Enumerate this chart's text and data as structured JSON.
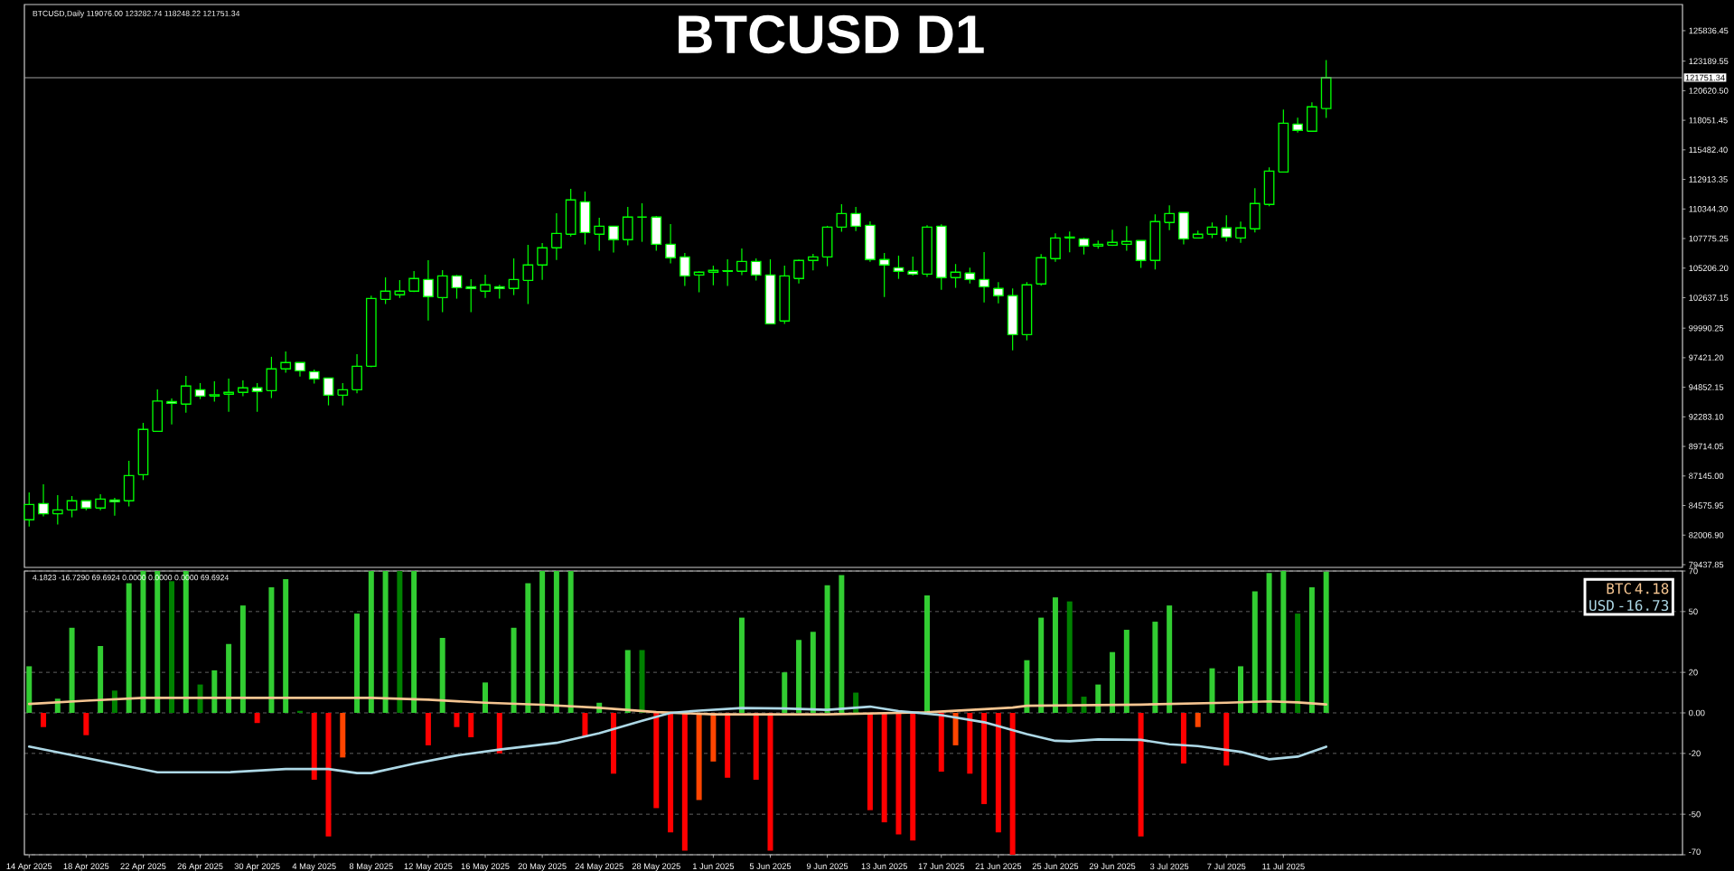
{
  "chart_data": [
    {
      "type": "candlestick",
      "title": "BTCUSD D1",
      "annotations": [
        "BTCUSD,Daily 119076.00 123282.74 118248.22 121751.34"
      ],
      "x": [
        "2025-04-14",
        "2025-04-15",
        "2025-04-16",
        "2025-04-17",
        "2025-04-18",
        "2025-04-19",
        "2025-04-20",
        "2025-04-21",
        "2025-04-22",
        "2025-04-23",
        "2025-04-24",
        "2025-04-25",
        "2025-04-26",
        "2025-04-27",
        "2025-04-28",
        "2025-04-29",
        "2025-04-30",
        "2025-05-01",
        "2025-05-02",
        "2025-05-03",
        "2025-05-04",
        "2025-05-05",
        "2025-05-06",
        "2025-05-07",
        "2025-05-08",
        "2025-05-09",
        "2025-05-10",
        "2025-05-11",
        "2025-05-12",
        "2025-05-13",
        "2025-05-14",
        "2025-05-15",
        "2025-05-16",
        "2025-05-17",
        "2025-05-18",
        "2025-05-19",
        "2025-05-20",
        "2025-05-21",
        "2025-05-22",
        "2025-05-23",
        "2025-05-24",
        "2025-05-25",
        "2025-05-26",
        "2025-05-27",
        "2025-05-28",
        "2025-05-29",
        "2025-05-30",
        "2025-05-31",
        "2025-06-01",
        "2025-06-02",
        "2025-06-03",
        "2025-06-04",
        "2025-06-05",
        "2025-06-06",
        "2025-06-07",
        "2025-06-08",
        "2025-06-09",
        "2025-06-10",
        "2025-06-11",
        "2025-06-12",
        "2025-06-13",
        "2025-06-14",
        "2025-06-15",
        "2025-06-16",
        "2025-06-17",
        "2025-06-18",
        "2025-06-19",
        "2025-06-20",
        "2025-06-21",
        "2025-06-22",
        "2025-06-23",
        "2025-06-24",
        "2025-06-25",
        "2025-06-26",
        "2025-06-27",
        "2025-06-28",
        "2025-06-29",
        "2025-06-30",
        "2025-07-01",
        "2025-07-02",
        "2025-07-03",
        "2025-07-04",
        "2025-07-05",
        "2025-07-06",
        "2025-07-07",
        "2025-07-08",
        "2025-07-09",
        "2025-07-10",
        "2025-07-11",
        "2025-07-12",
        "2025-07-13",
        "2025-07-14"
      ],
      "ohlc": [
        [
          83340,
          85720,
          82760,
          84670
        ],
        [
          84750,
          86430,
          83630,
          83860
        ],
        [
          83860,
          85480,
          82920,
          84200
        ],
        [
          84200,
          85400,
          83550,
          84990
        ],
        [
          84990,
          84990,
          84170,
          84360
        ],
        [
          84360,
          85560,
          84170,
          85140
        ],
        [
          85060,
          85250,
          83700,
          84910
        ],
        [
          84990,
          88470,
          84490,
          87180
        ],
        [
          87260,
          91760,
          86790,
          91190
        ],
        [
          91030,
          94670,
          91030,
          93650
        ],
        [
          93620,
          93880,
          91630,
          93470
        ],
        [
          93390,
          95850,
          92650,
          94960
        ],
        [
          94640,
          95220,
          93830,
          94090
        ],
        [
          94090,
          95380,
          93600,
          94200
        ],
        [
          94250,
          95610,
          92730,
          94410
        ],
        [
          94410,
          95450,
          94070,
          94800
        ],
        [
          94800,
          95220,
          92730,
          94490
        ],
        [
          94560,
          97500,
          93910,
          96450
        ],
        [
          96450,
          97970,
          96110,
          97000
        ],
        [
          97000,
          97000,
          95790,
          96290
        ],
        [
          96210,
          96400,
          95170,
          95580
        ],
        [
          95660,
          95660,
          93280,
          94170
        ],
        [
          94170,
          95220,
          93280,
          94640
        ],
        [
          94640,
          97730,
          94330,
          96680
        ],
        [
          96680,
          102810,
          96580,
          102570
        ],
        [
          102490,
          104400,
          102080,
          103200
        ],
        [
          102890,
          104170,
          102620,
          103200
        ],
        [
          103200,
          104950,
          103120,
          104300
        ],
        [
          104220,
          105900,
          100660,
          102730
        ],
        [
          102650,
          105030,
          101370,
          104530
        ],
        [
          104530,
          104610,
          102550,
          103510
        ],
        [
          103590,
          104250,
          101370,
          103440
        ],
        [
          103200,
          104640,
          102620,
          103750
        ],
        [
          103590,
          103750,
          102550,
          103440
        ],
        [
          103440,
          106050,
          102860,
          104220
        ],
        [
          104140,
          107230,
          102080,
          105480
        ],
        [
          105480,
          107390,
          104190,
          106970
        ],
        [
          106970,
          109980,
          105920,
          108220
        ],
        [
          108150,
          112100,
          107960,
          111130
        ],
        [
          110970,
          111860,
          107260,
          108300
        ],
        [
          108150,
          109590,
          106710,
          108850
        ],
        [
          108850,
          108850,
          106550,
          107680
        ],
        [
          107680,
          110530,
          107180,
          109640
        ],
        [
          109640,
          110840,
          107490,
          109640
        ],
        [
          109640,
          109740,
          106710,
          107280
        ],
        [
          107280,
          109040,
          105610,
          106110
        ],
        [
          106180,
          106520,
          103650,
          104530
        ],
        [
          104610,
          104930,
          103100,
          104850
        ],
        [
          104850,
          105420,
          103720,
          105010
        ],
        [
          104930,
          105970,
          103650,
          104980
        ],
        [
          104930,
          106920,
          104590,
          105790
        ],
        [
          105790,
          106050,
          104120,
          104610
        ],
        [
          104610,
          105970,
          100370,
          100370
        ],
        [
          100610,
          105420,
          100350,
          104530
        ],
        [
          104300,
          105950,
          103880,
          105870
        ],
        [
          105870,
          106450,
          105010,
          106180
        ],
        [
          106180,
          108880,
          105370,
          108770
        ],
        [
          108770,
          110760,
          108360,
          109950
        ],
        [
          109950,
          110530,
          108430,
          108850
        ],
        [
          108930,
          109270,
          105760,
          105950
        ],
        [
          105950,
          106520,
          102700,
          105480
        ],
        [
          105240,
          106290,
          104270,
          104930
        ],
        [
          104930,
          106210,
          104560,
          104690
        ],
        [
          104690,
          108930,
          104430,
          108770
        ],
        [
          108850,
          109010,
          103330,
          104380
        ],
        [
          104380,
          105560,
          103490,
          104850
        ],
        [
          104770,
          105240,
          103880,
          104220
        ],
        [
          104220,
          106600,
          102230,
          103590
        ],
        [
          103440,
          103990,
          102150,
          102810
        ],
        [
          102810,
          103440,
          98070,
          99430
        ],
        [
          99430,
          103990,
          98930,
          103750
        ],
        [
          103830,
          106420,
          103670,
          106110
        ],
        [
          106030,
          108220,
          105760,
          107830
        ],
        [
          107830,
          108380,
          106580,
          107910
        ],
        [
          107750,
          107830,
          106390,
          107130
        ],
        [
          107130,
          107600,
          106890,
          107280
        ],
        [
          107200,
          108540,
          107130,
          107440
        ],
        [
          107280,
          108850,
          106710,
          107520
        ],
        [
          107600,
          107600,
          105220,
          105870
        ],
        [
          105870,
          109870,
          105080,
          109250
        ],
        [
          109170,
          110660,
          108510,
          109950
        ],
        [
          110030,
          110030,
          107260,
          107750
        ],
        [
          107830,
          108460,
          107830,
          108150
        ],
        [
          108150,
          109170,
          107810,
          108770
        ],
        [
          108700,
          109800,
          107520,
          107910
        ],
        [
          107830,
          109250,
          107410,
          108700
        ],
        [
          108620,
          112150,
          108300,
          110820
        ],
        [
          110740,
          113960,
          110580,
          113640
        ],
        [
          113560,
          118980,
          113560,
          117800
        ],
        [
          117720,
          118270,
          116990,
          117180
        ],
        [
          117100,
          119610,
          117100,
          119220
        ],
        [
          119076.0,
          123282.74,
          118248.22,
          121751.34
        ]
      ],
      "xlim": [
        "2025-04-13T16:00",
        "2025-08-08"
      ],
      "ylim": [
        79200,
        128110
      ],
      "yticks": [
        79437.85,
        {
          "value": 82006.9,
          "label": "82006.90"
        },
        84575.95,
        {
          "value": 87145,
          "label": "87145.00"
        },
        89714.05,
        {
          "value": 92283.1,
          "label": "92283.10"
        },
        94852.15,
        {
          "value": 97421.2,
          "label": "97421.20"
        },
        99990.25,
        102637.15,
        {
          "value": 105206.2,
          "label": "105206.20"
        },
        107775.25,
        {
          "value": 110344.3,
          "label": "110344.30"
        },
        112913.35,
        {
          "value": 115482.4,
          "label": "115482.40"
        },
        118051.45,
        {
          "value": 120620.5,
          "label": "120620.50"
        },
        123189.55,
        125836.45
      ],
      "ref_lines": [
        {
          "axis": "y",
          "value": 121751.34,
          "label": "121751.34",
          "color": "#a0a0a0"
        }
      ],
      "tick_labels": "y"
    },
    {
      "type": "bar",
      "annotations": [
        "4.1823 -16.7290 69.6924 0.0000 0.0000 0.0000 69.6924",
        "4.18",
        "-16.73"
      ],
      "x": [
        "2025-04-14",
        "2025-04-15",
        "2025-04-16",
        "2025-04-17",
        "2025-04-18",
        "2025-04-19",
        "2025-04-20",
        "2025-04-21",
        "2025-04-22",
        "2025-04-23",
        "2025-04-24",
        "2025-04-25",
        "2025-04-26",
        "2025-04-27",
        "2025-04-28",
        "2025-04-29",
        "2025-04-30",
        "2025-05-01",
        "2025-05-02",
        "2025-05-03",
        "2025-05-04",
        "2025-05-05",
        "2025-05-06",
        "2025-05-07",
        "2025-05-08",
        "2025-05-09",
        "2025-05-10",
        "2025-05-11",
        "2025-05-12",
        "2025-05-13",
        "2025-05-14",
        "2025-05-15",
        "2025-05-16",
        "2025-05-17",
        "2025-05-18",
        "2025-05-19",
        "2025-05-20",
        "2025-05-21",
        "2025-05-22",
        "2025-05-23",
        "2025-05-24",
        "2025-05-25",
        "2025-05-26",
        "2025-05-27",
        "2025-05-28",
        "2025-05-29",
        "2025-05-30",
        "2025-05-31",
        "2025-06-01",
        "2025-06-02",
        "2025-06-03",
        "2025-06-04",
        "2025-06-05",
        "2025-06-06",
        "2025-06-07",
        "2025-06-08",
        "2025-06-09",
        "2025-06-10",
        "2025-06-11",
        "2025-06-12",
        "2025-06-13",
        "2025-06-14",
        "2025-06-15",
        "2025-06-16",
        "2025-06-17",
        "2025-06-18",
        "2025-06-19",
        "2025-06-20",
        "2025-06-21",
        "2025-06-22",
        "2025-06-23",
        "2025-06-24",
        "2025-06-25",
        "2025-06-26",
        "2025-06-27",
        "2025-06-28",
        "2025-06-29",
        "2025-06-30",
        "2025-07-01",
        "2025-07-02",
        "2025-07-03",
        "2025-07-04",
        "2025-07-05",
        "2025-07-06",
        "2025-07-07",
        "2025-07-08",
        "2025-07-09",
        "2025-07-10",
        "2025-07-11",
        "2025-07-12",
        "2025-07-13",
        "2025-07-14"
      ],
      "series": [
        {
          "type": "bar",
          "values": [
            23,
            -7,
            7,
            42,
            -11,
            33,
            11,
            64,
            70,
            70,
            65,
            70,
            14,
            21,
            34,
            53,
            -5,
            62,
            66,
            1,
            -33,
            -61,
            -22,
            49,
            70,
            70,
            70,
            70,
            -16,
            37,
            -7,
            -12,
            15,
            -20,
            42,
            64,
            70,
            70,
            70,
            -12,
            5,
            -30,
            31,
            31,
            -47,
            -59,
            -68,
            -43,
            -24,
            -32,
            47,
            -33,
            -68,
            20,
            36,
            40,
            63,
            68,
            10,
            -48,
            -54,
            -60,
            -63,
            58,
            -29,
            -16,
            -30,
            -45,
            -59,
            -70,
            26,
            47,
            57,
            55,
            8,
            14,
            30,
            41,
            -61,
            45,
            53,
            -25,
            -7,
            22,
            -26,
            23,
            60,
            69,
            70,
            49,
            62,
            69.7
          ],
          "colors": [
            "#32cd32",
            "#ff0000",
            "#32cd32",
            "#32cd32",
            "#ff0000",
            "#32cd32",
            "#008000",
            "#32cd32",
            "#32cd32",
            "#32cd32",
            "#008000",
            "#32cd32",
            "#008000",
            "#32cd32",
            "#32cd32",
            "#32cd32",
            "#ff0000",
            "#32cd32",
            "#32cd32",
            "#008000",
            "#ff0000",
            "#ff0000",
            "#ff4500",
            "#32cd32",
            "#32cd32",
            "#32cd32",
            "#008000",
            "#32cd32",
            "#ff0000",
            "#32cd32",
            "#ff0000",
            "#ff0000",
            "#32cd32",
            "#ff0000",
            "#32cd32",
            "#32cd32",
            "#32cd32",
            "#32cd32",
            "#32cd32",
            "#ff0000",
            "#32cd32",
            "#ff0000",
            "#32cd32",
            "#008000",
            "#ff0000",
            "#ff0000",
            "#ff0000",
            "#ff4500",
            "#ff4500",
            "#ff0000",
            "#32cd32",
            "#ff0000",
            "#ff0000",
            "#32cd32",
            "#32cd32",
            "#32cd32",
            "#32cd32",
            "#32cd32",
            "#008000",
            "#ff0000",
            "#ff0000",
            "#ff0000",
            "#ff0000",
            "#32cd32",
            "#ff0000",
            "#ff4500",
            "#ff0000",
            "#ff0000",
            "#ff0000",
            "#ff0000",
            "#32cd32",
            "#32cd32",
            "#32cd32",
            "#008000",
            "#008000",
            "#32cd32",
            "#32cd32",
            "#32cd32",
            "#ff0000",
            "#32cd32",
            "#32cd32",
            "#ff0000",
            "#ff4500",
            "#32cd32",
            "#ff0000",
            "#32cd32",
            "#32cd32",
            "#32cd32",
            "#32cd32",
            "#008000",
            "#32cd32",
            "#32cd32"
          ]
        },
        {
          "name": "BTC",
          "type": "line",
          "color": "#f5c591",
          "x": [
            "2025-04-14",
            "2025-04-18",
            "2025-04-22",
            "2025-04-30",
            "2025-05-08",
            "2025-05-12",
            "2025-05-16",
            "2025-05-20",
            "2025-05-24",
            "2025-05-28",
            "2025-06-01",
            "2025-06-09",
            "2025-06-16",
            "2025-06-22",
            "2025-06-23",
            "2025-07-01",
            "2025-07-07",
            "2025-07-10",
            "2025-07-12",
            "2025-07-14"
          ],
          "values": [
            4.4,
            6,
            7.4,
            7.4,
            7.4,
            6.5,
            5,
            4,
            2.5,
            0.4,
            -0.7,
            -0.7,
            0.3,
            2.6,
            3.5,
            4.1,
            5,
            5.7,
            5.2,
            4.2
          ]
        },
        {
          "name": "USD",
          "type": "line",
          "color": "#add8e6",
          "x": [
            "2025-04-14",
            "2025-04-23",
            "2025-04-28",
            "2025-05-02",
            "2025-05-05",
            "2025-05-07",
            "2025-05-08",
            "2025-05-11",
            "2025-05-14",
            "2025-05-17",
            "2025-05-21",
            "2025-05-24",
            "2025-05-27",
            "2025-05-29",
            "2025-05-31",
            "2025-06-03",
            "2025-06-06",
            "2025-06-09",
            "2025-06-12",
            "2025-06-14",
            "2025-06-17",
            "2025-06-20",
            "2025-06-23",
            "2025-06-25",
            "2025-06-26",
            "2025-06-28",
            "2025-07-01",
            "2025-07-03",
            "2025-07-05",
            "2025-07-08",
            "2025-07-10",
            "2025-07-12",
            "2025-07-14"
          ],
          "values": [
            -16.6,
            -29.3,
            -29.3,
            -27.7,
            -27.7,
            -29.7,
            -29.7,
            -25.1,
            -21,
            -18.1,
            -14.8,
            -10,
            -3.9,
            0,
            1.1,
            2.4,
            2.2,
            1.5,
            3.1,
            0.9,
            -1.1,
            -4.6,
            -10.5,
            -13.8,
            -14,
            -13.1,
            -13.3,
            -15.5,
            -16.4,
            -19.2,
            -22.9,
            -21.6,
            -16.7
          ]
        }
      ],
      "xlim": [
        "2025-04-13T16:00",
        "2025-08-08"
      ],
      "xticks": [
        {
          "value": "2025-04-14",
          "label": "14 Apr 2025"
        },
        {
          "value": "2025-04-18",
          "label": "18 Apr 2025"
        },
        {
          "value": "2025-04-22",
          "label": "22 Apr 2025"
        },
        {
          "value": "2025-04-26",
          "label": "26 Apr 2025"
        },
        {
          "value": "2025-04-30",
          "label": "30 Apr 2025"
        },
        {
          "value": "2025-05-04",
          "label": "4 May 2025"
        },
        {
          "value": "2025-05-08",
          "label": "8 May 2025"
        },
        {
          "value": "2025-05-12",
          "label": "12 May 2025"
        },
        {
          "value": "2025-05-16",
          "label": "16 May 2025"
        },
        {
          "value": "2025-05-20",
          "label": "20 May 2025"
        },
        {
          "value": "2025-05-24",
          "label": "24 May 2025"
        },
        {
          "value": "2025-05-28",
          "label": "28 May 2025"
        },
        {
          "value": "2025-06-01",
          "label": "1 Jun 2025"
        },
        {
          "value": "2025-06-05",
          "label": "5 Jun 2025"
        },
        {
          "value": "2025-06-09",
          "label": "9 Jun 2025"
        },
        {
          "value": "2025-06-13",
          "label": "13 Jun 2025"
        },
        {
          "value": "2025-06-17",
          "label": "17 Jun 2025"
        },
        {
          "value": "2025-06-21",
          "label": "21 Jun 2025"
        },
        {
          "value": "2025-06-25",
          "label": "25 Jun 2025"
        },
        {
          "value": "2025-06-29",
          "label": "29 Jun 2025"
        },
        {
          "value": "2025-07-03",
          "label": "3 Jul 2025"
        },
        {
          "value": "2025-07-07",
          "label": "7 Jul 2025"
        },
        {
          "value": "2025-07-11",
          "label": "11 Jul 2025"
        }
      ],
      "ylim": [
        -70,
        70
      ],
      "yticks": [
        -70,
        -50,
        -20,
        {
          "value": 0,
          "label": "0.00"
        },
        20,
        50,
        70
      ],
      "grid": "y",
      "legend": "top right"
    }
  ]
}
